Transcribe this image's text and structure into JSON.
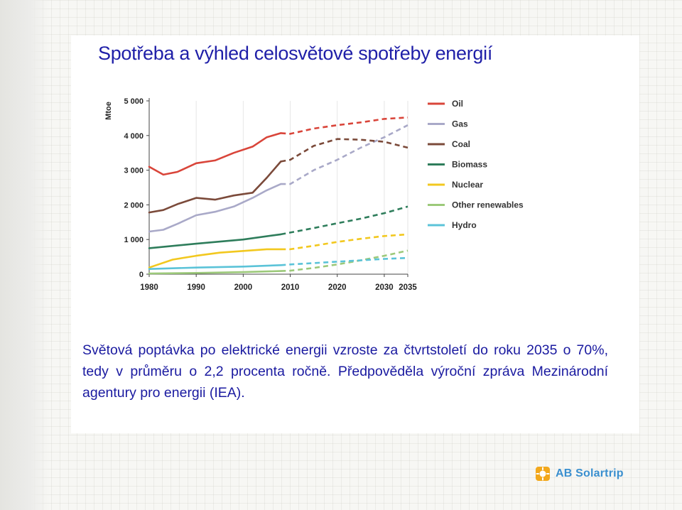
{
  "slide": {
    "title": "Spotřeba a výhled celosvětové spotřeby energií",
    "body": "Světová poptávka po elektrické energii vzroste za čtvrtstoletí do roku 2035 o 70%, tedy v průměru o 2,2 procenta ročně. Předpověděla výroční zpráva Mezinárodní agentury pro energii (IEA).",
    "logo_text": "AB Solartrip"
  },
  "chart_data": {
    "type": "line",
    "title": "",
    "xlabel": "",
    "ylabel": "Mtoe",
    "xlim": [
      1980,
      2035
    ],
    "ylim": [
      0,
      5000
    ],
    "x_ticks": [
      1980,
      1990,
      2000,
      2010,
      2020,
      2030,
      2035
    ],
    "x_tick_labels": [
      "1980",
      "1990",
      "2000",
      "2010",
      "2020",
      "2030",
      "2035"
    ],
    "y_ticks": [
      0,
      1000,
      2000,
      3000,
      4000,
      5000
    ],
    "y_tick_labels": [
      "0",
      "1 000",
      "2 000",
      "3 000",
      "4 000",
      "5 000"
    ],
    "grid": "vertical",
    "legend_position": "right",
    "historical_end": 2008,
    "series": [
      {
        "name": "Oil",
        "color": "#d9453a",
        "x": [
          1980,
          1983,
          1986,
          1990,
          1994,
          1998,
          2002,
          2005,
          2008,
          2010,
          2015,
          2020,
          2025,
          2030,
          2035
        ],
        "y": [
          3100,
          2870,
          2950,
          3200,
          3280,
          3500,
          3680,
          3950,
          4070,
          4050,
          4200,
          4300,
          4380,
          4480,
          4520
        ]
      },
      {
        "name": "Gas",
        "color": "#a9a9c8",
        "x": [
          1980,
          1983,
          1986,
          1990,
          1994,
          1998,
          2002,
          2005,
          2008,
          2010,
          2015,
          2020,
          2025,
          2030,
          2035
        ],
        "y": [
          1230,
          1280,
          1450,
          1700,
          1800,
          1950,
          2200,
          2420,
          2600,
          2600,
          3000,
          3300,
          3650,
          3950,
          4300
        ]
      },
      {
        "name": "Coal",
        "color": "#7b4a3a",
        "x": [
          1980,
          1983,
          1986,
          1990,
          1994,
          1998,
          2002,
          2005,
          2008,
          2010,
          2015,
          2020,
          2025,
          2030,
          2035
        ],
        "y": [
          1780,
          1850,
          2020,
          2200,
          2150,
          2270,
          2350,
          2780,
          3250,
          3300,
          3700,
          3900,
          3880,
          3820,
          3650
        ]
      },
      {
        "name": "Biomass",
        "color": "#2e7d5b",
        "x": [
          1980,
          1990,
          2000,
          2008,
          2010,
          2015,
          2020,
          2025,
          2030,
          2035
        ],
        "y": [
          750,
          880,
          1000,
          1150,
          1200,
          1330,
          1470,
          1600,
          1760,
          1950
        ]
      },
      {
        "name": "Nuclear",
        "color": "#f2c81f",
        "x": [
          1980,
          1985,
          1990,
          1995,
          2000,
          2005,
          2008,
          2010,
          2015,
          2020,
          2025,
          2030,
          2035
        ],
        "y": [
          190,
          420,
          530,
          620,
          670,
          720,
          720,
          720,
          820,
          930,
          1020,
          1100,
          1150
        ]
      },
      {
        "name": "Other renewables",
        "color": "#9cc97a",
        "x": [
          1980,
          1990,
          2000,
          2008,
          2010,
          2015,
          2020,
          2025,
          2030,
          2035
        ],
        "y": [
          20,
          35,
          60,
          90,
          100,
          180,
          280,
          400,
          530,
          680
        ]
      },
      {
        "name": "Hydro",
        "color": "#5bc3d8",
        "x": [
          1980,
          1990,
          2000,
          2008,
          2010,
          2015,
          2020,
          2025,
          2030,
          2035
        ],
        "y": [
          150,
          190,
          220,
          260,
          280,
          320,
          360,
          400,
          440,
          470
        ]
      }
    ]
  }
}
